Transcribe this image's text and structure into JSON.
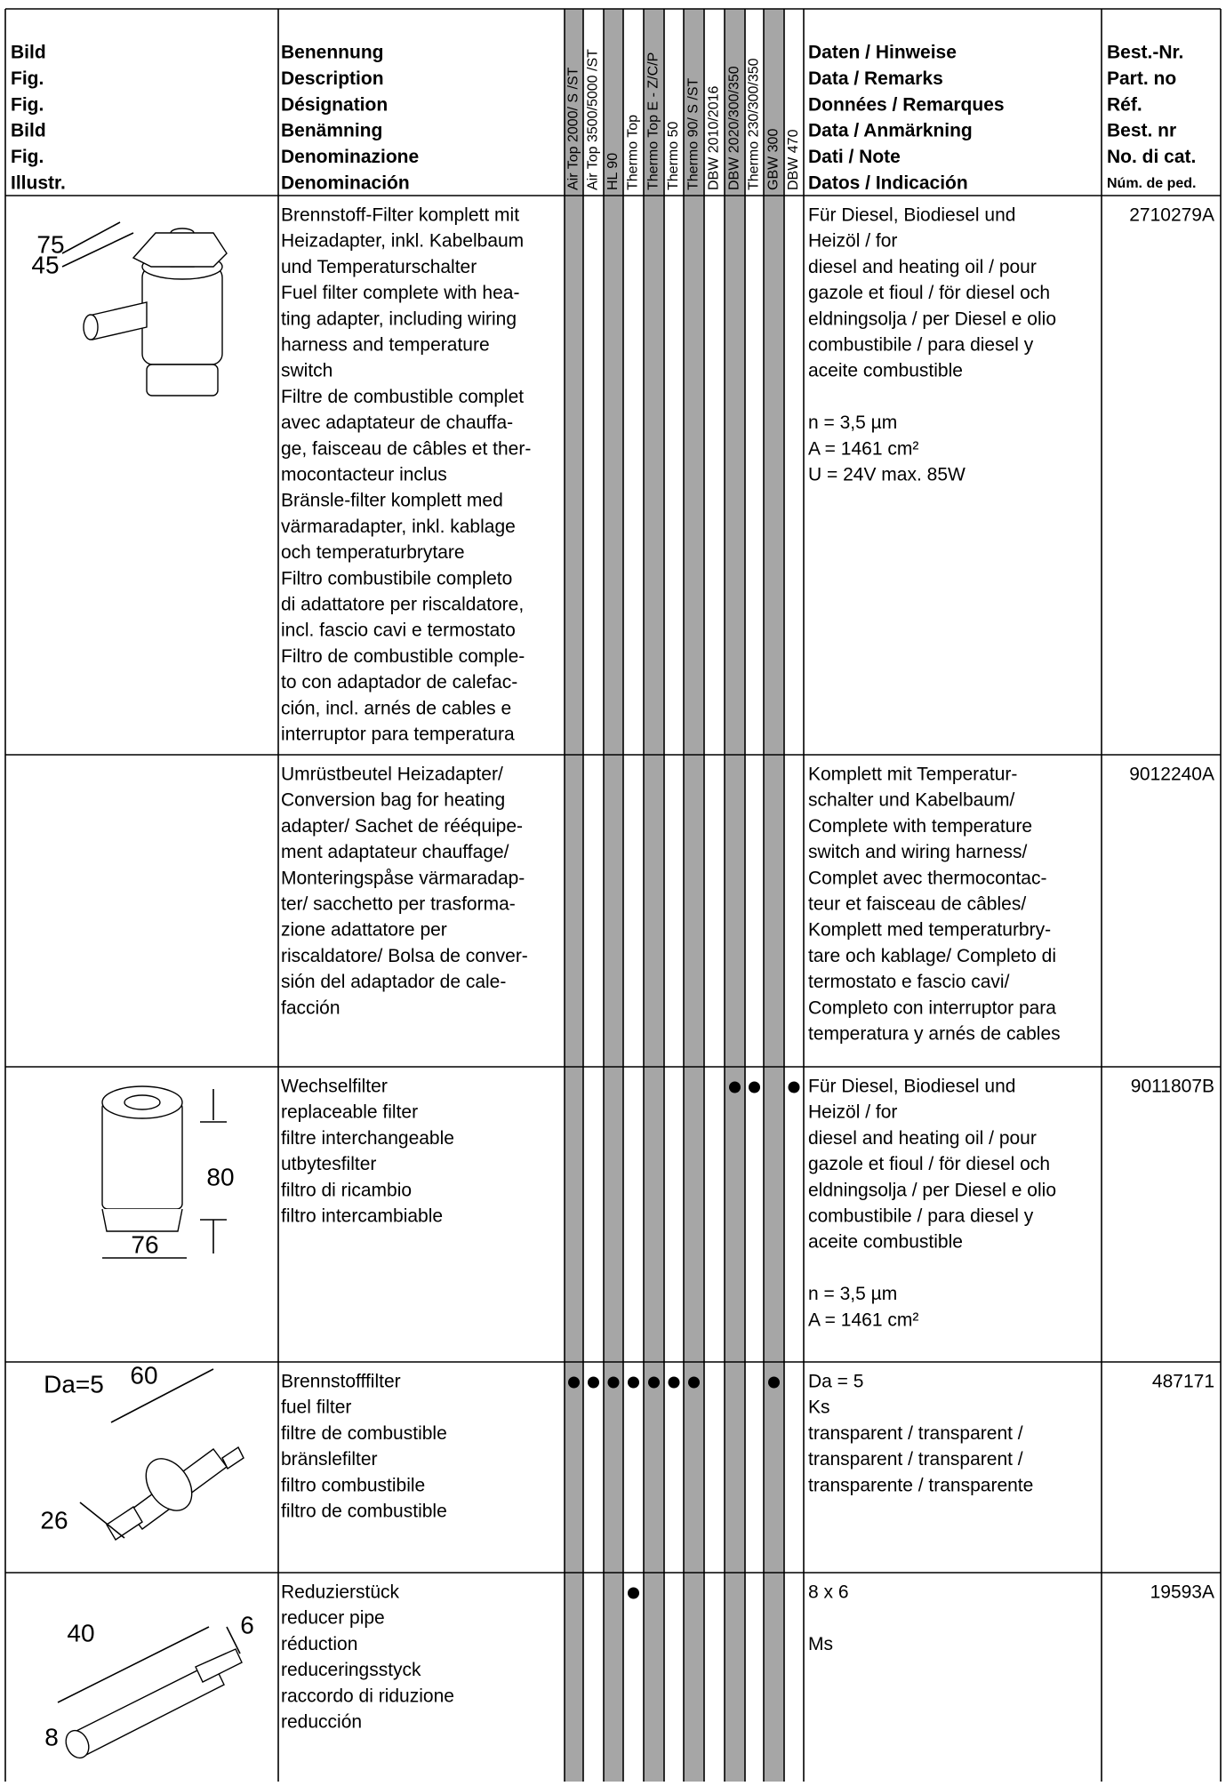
{
  "header": {
    "figure": [
      "Bild",
      "Fig.",
      "Fig.",
      "Bild",
      "Fig.",
      "Illustr."
    ],
    "designation": [
      "Benennung",
      "Description",
      "Désignation",
      "Benämning",
      "Denominazione",
      "Denominación"
    ],
    "models": [
      "Air Top 2000/ S /ST",
      "Air Top 3500/5000 /ST",
      "HL 90",
      "Thermo Top",
      "Thermo Top E - Z/C/P",
      "Thermo 50",
      "Thermo 90/ S /ST",
      "DBW 2010/2016",
      "DBW 2020/300/350",
      "Thermo 230/300/350",
      "GBW 300",
      "DBW 470"
    ],
    "data": [
      "Daten / Hinweise",
      "Data / Remarks",
      "Données / Remarques",
      "Data / Anmärkning",
      "Dati / Note",
      "Datos / Indicación"
    ],
    "part_no": [
      "Best.-Nr.",
      "Part. no",
      "Réf.",
      "Best. nr",
      "No. di cat.",
      "Núm. de ped."
    ]
  },
  "rows": [
    {
      "dimensions": [
        "75",
        "45"
      ],
      "designation": [
        "Brennstoff-Filter komplett mit",
        "Heizadapter, inkl. Kabelbaum",
        "und Temperaturschalter",
        "Fuel filter complete with hea-",
        "ting adapter, including wiring",
        "harness and temperature",
        "switch",
        "Filtre de combustible complet",
        "avec adaptateur de chauffa-",
        "ge, faisceau de câbles et ther-",
        "mocontacteur inclus",
        "Bränsle-filter komplett med",
        "värmaradapter, inkl. kablage",
        "och temperaturbrytare",
        "Filtro combustibile completo",
        "di adattatore per riscaldatore,",
        "incl. fascio cavi e termostato",
        "Filtro de combustible comple-",
        "to con adaptador de calefac-",
        "ción, incl. arnés de cables e",
        "interruptor para temperatura"
      ],
      "marked_columns": [],
      "data": [
        [
          "Für Diesel, Biodiesel und",
          "Heizöl / for",
          "diesel and heating oil / pour",
          "gazole et fioul / för diesel och",
          "eldningsolja / per Diesel e olio",
          "combustibile / para diesel y",
          "aceite combustible"
        ],
        [
          "n = 3,5 µm",
          "A = 1461 cm²",
          "U = 24V max. 85W"
        ]
      ],
      "part_no": "2710279A"
    },
    {
      "dimensions": [],
      "designation": [
        "Umrüstbeutel Heizadapter/",
        "Conversion bag for heating",
        "adapter/ Sachet de rééquipe-",
        "ment adaptateur chauffage/",
        "Monteringspåse värmaradap-",
        "ter/ sacchetto per trasforma-",
        "zione adattatore per",
        "riscaldatore/ Bolsa de conver-",
        "sión del adaptador de cale-",
        "facción"
      ],
      "marked_columns": [],
      "data": [
        [
          "Komplett mit Temperatur-",
          "schalter und Kabelbaum/",
          "Complete with temperature",
          "switch and wiring harness/",
          "Complet avec thermocontac-",
          "teur et faisceau de câbles/",
          "Komplett med temperaturbry-",
          "tare och kablage/ Completo di",
          "termostato e fascio cavi/",
          "Completo con interruptor para",
          "temperatura y arnés de cables"
        ]
      ],
      "part_no": "9012240A"
    },
    {
      "dimensions": [
        "80",
        "76"
      ],
      "designation": [
        "Wechselfilter",
        "replaceable filter",
        "filtre interchangeable",
        "utbytesfilter",
        "filtro di ricambio",
        "filtro intercambiable"
      ],
      "marked_columns": [
        8,
        9,
        11
      ],
      "data": [
        [
          "Für Diesel, Biodiesel und",
          "Heizöl / for",
          "diesel and heating oil / pour",
          "gazole et fioul / för diesel och",
          "eldningsolja / per Diesel e olio",
          "combustibile / para diesel y",
          "aceite combustible"
        ],
        [
          "n = 3,5 µm",
          "A = 1461 cm²"
        ]
      ],
      "part_no": "9011807B"
    },
    {
      "dimensions": [
        "Da=5",
        "60",
        "26"
      ],
      "designation": [
        "Brennstofffilter",
        "fuel filter",
        "filtre de combustible",
        "bränslefilter",
        "filtro combustibile",
        "filtro de combustible"
      ],
      "marked_columns": [
        0,
        1,
        2,
        3,
        4,
        5,
        6,
        10
      ],
      "data": [
        [
          "Da = 5",
          "Ks",
          "transparent / transparent /",
          "transparent / transparent /",
          "transparente / transparente"
        ]
      ],
      "part_no": "487171"
    },
    {
      "dimensions": [
        "40",
        "6",
        "8"
      ],
      "designation": [
        "Reduzierstück",
        "reducer pipe",
        "réduction",
        "reduceringsstyck",
        "raccordo di riduzione",
        "reducción"
      ],
      "marked_columns": [
        3
      ],
      "data": [
        [
          "8 x 6"
        ],
        [
          "Ms"
        ]
      ],
      "part_no": "19593A"
    }
  ]
}
